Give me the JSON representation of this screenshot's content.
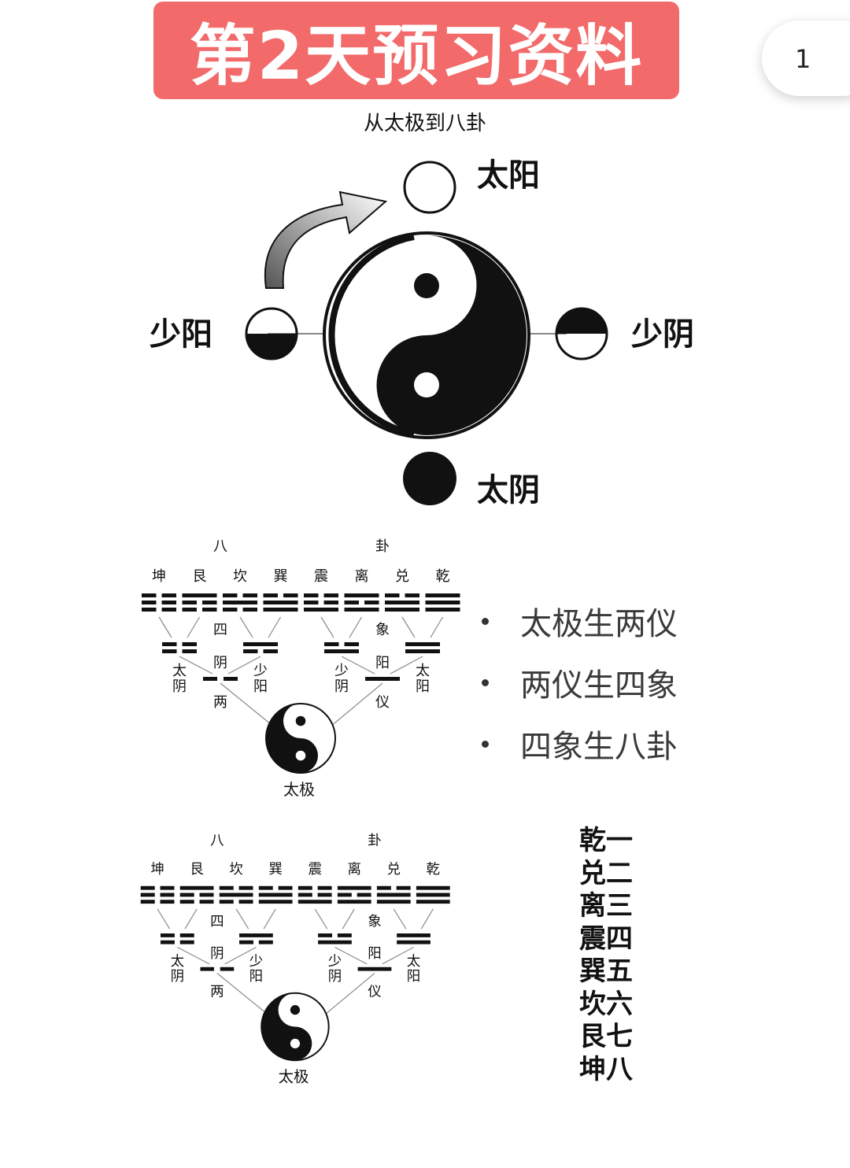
{
  "header": {
    "title": "第2天预习资料",
    "page_number": "1"
  },
  "subtitle": "从太极到八卦",
  "figure1": {
    "labels": {
      "top": "太阳",
      "left": "少阳",
      "right": "少阴",
      "bottom": "太阴"
    }
  },
  "tree": {
    "top_left": "八",
    "top_right": "卦",
    "trigrams": [
      {
        "name": "坤",
        "lines": [
          0,
          0,
          0
        ]
      },
      {
        "name": "艮",
        "lines": [
          1,
          0,
          0
        ]
      },
      {
        "name": "坎",
        "lines": [
          0,
          1,
          0
        ]
      },
      {
        "name": "巽",
        "lines": [
          0,
          1,
          1
        ]
      },
      {
        "name": "震",
        "lines": [
          0,
          0,
          1
        ]
      },
      {
        "name": "离",
        "lines": [
          1,
          0,
          1
        ]
      },
      {
        "name": "兑",
        "lines": [
          0,
          1,
          1
        ]
      },
      {
        "name": "乾",
        "lines": [
          1,
          1,
          1
        ]
      }
    ],
    "four_left": "四",
    "four_right": "象",
    "yin_label": "阴",
    "yang_label": "阳",
    "tai_yin": "太阴",
    "shao_yang": "少阳",
    "shao_yin": "少阴",
    "tai_yang": "太阳",
    "two_left": "两",
    "two_right": "仪",
    "taiji": "太极"
  },
  "bullets": [
    "太极生两仪",
    "两仪生四象",
    "四象生八卦"
  ],
  "trigram_order": [
    "乾一",
    "兑二",
    "离三",
    "震四",
    "巽五",
    "坎六",
    "艮七",
    "坤八"
  ]
}
